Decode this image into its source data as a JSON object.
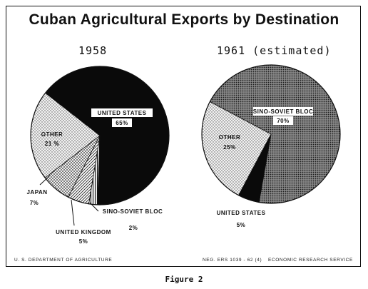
{
  "figure": {
    "title": "Cuban Agricultural Exports by Destination",
    "footer_left": "U. S. DEPARTMENT OF AGRICULTURE",
    "footer_ref": "NEG. ERS 1039 - 62 (4)",
    "footer_right": "ECONOMIC RESEARCH SERVICE",
    "caption": "Figure 2"
  },
  "chart_data": [
    {
      "type": "pie",
      "title": "1958",
      "unit": "%",
      "slices": [
        {
          "name": "UNITED STATES",
          "value": 65,
          "value_label": "65%",
          "pattern": "solid-black"
        },
        {
          "name": "SINO-SOVIET BLOC",
          "value": 2,
          "value_label": "2%",
          "pattern": "vertical-lines"
        },
        {
          "name": "UNITED KINGDOM",
          "value": 5,
          "value_label": "5%",
          "pattern": "diagonal-lines"
        },
        {
          "name": "JAPAN",
          "value": 7,
          "value_label": "7%",
          "pattern": "crosshatch"
        },
        {
          "name": "OTHER",
          "value": 21,
          "value_label": "21 %",
          "pattern": "light-dots"
        }
      ]
    },
    {
      "type": "pie",
      "title": "1961 (estimated)",
      "unit": "%",
      "slices": [
        {
          "name": "SINO-SOVIET BLOC",
          "value": 70,
          "value_label": "70%",
          "pattern": "dense-dots"
        },
        {
          "name": "UNITED STATES",
          "value": 5,
          "value_label": "5%",
          "pattern": "solid-black"
        },
        {
          "name": "OTHER",
          "value": 25,
          "value_label": "25%",
          "pattern": "light-dots"
        }
      ]
    }
  ]
}
